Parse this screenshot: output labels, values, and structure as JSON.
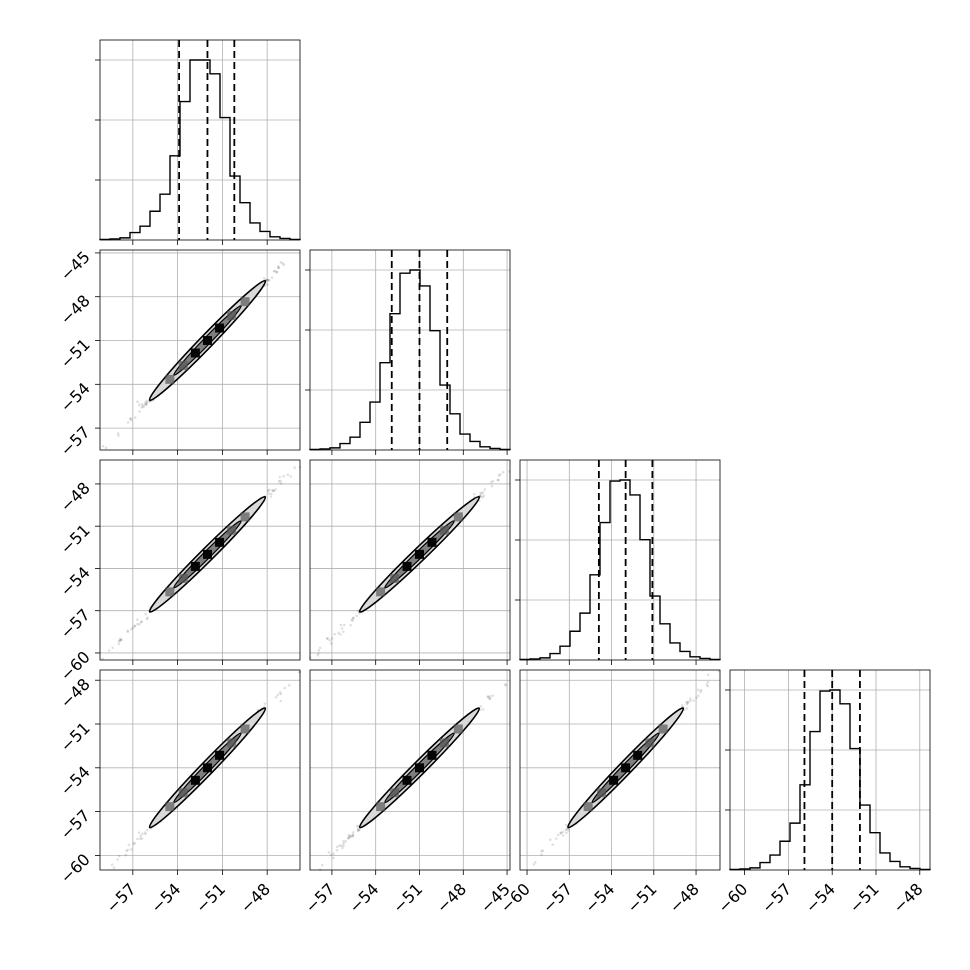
{
  "chart_data": {
    "type": "corner",
    "n_params": 4,
    "grid": true,
    "bins": 20,
    "quantile_lines": "dashed",
    "colors": {
      "line": "#000000",
      "grid": "#b0b0b0",
      "fill_light": "#d9d9d9",
      "fill_mid": "#7f7f7f"
    },
    "params": [
      {
        "range": [
          -59.2,
          -45.8
        ],
        "median": -52.0,
        "q16": -53.9,
        "q84": -50.2,
        "ticks": [
          -57,
          -54,
          -51,
          -48
        ]
      },
      {
        "range": [
          -58.5,
          -44.8
        ],
        "median": -51.0,
        "q16": -52.9,
        "q84": -49.1,
        "ticks": [
          -57,
          -54,
          -51,
          -48,
          -45
        ]
      },
      {
        "range": [
          -60.5,
          -46.3
        ],
        "median": -53.0,
        "q16": -54.9,
        "q84": -51.1,
        "ticks": [
          -60,
          -57,
          -54,
          -51,
          -48
        ]
      },
      {
        "range": [
          -61.0,
          -47.3
        ],
        "median": -54.0,
        "q16": -55.9,
        "q84": -52.1,
        "ticks": [
          -60,
          -57,
          -54,
          -51,
          -48
        ]
      }
    ],
    "histograms": [
      [
        0.5,
        1,
        2,
        7,
        13,
        27,
        43,
        79,
        130,
        169,
        169,
        156,
        115,
        60,
        35,
        16,
        8,
        3,
        1.5,
        0.5
      ],
      [
        0.5,
        1,
        2,
        6,
        12,
        26,
        45,
        82,
        128,
        166,
        169,
        154,
        112,
        61,
        34,
        15,
        8,
        3,
        1.5,
        0.5
      ],
      [
        0.5,
        1,
        2,
        6,
        13,
        27,
        44,
        80,
        129,
        168,
        169,
        155,
        113,
        60,
        34,
        16,
        8,
        3,
        1.5,
        0.5
      ],
      [
        0.5,
        1,
        2,
        7,
        14,
        27,
        44,
        80,
        130,
        168,
        169,
        156,
        114,
        61,
        35,
        16,
        8,
        3,
        1.5,
        0.5
      ]
    ]
  }
}
